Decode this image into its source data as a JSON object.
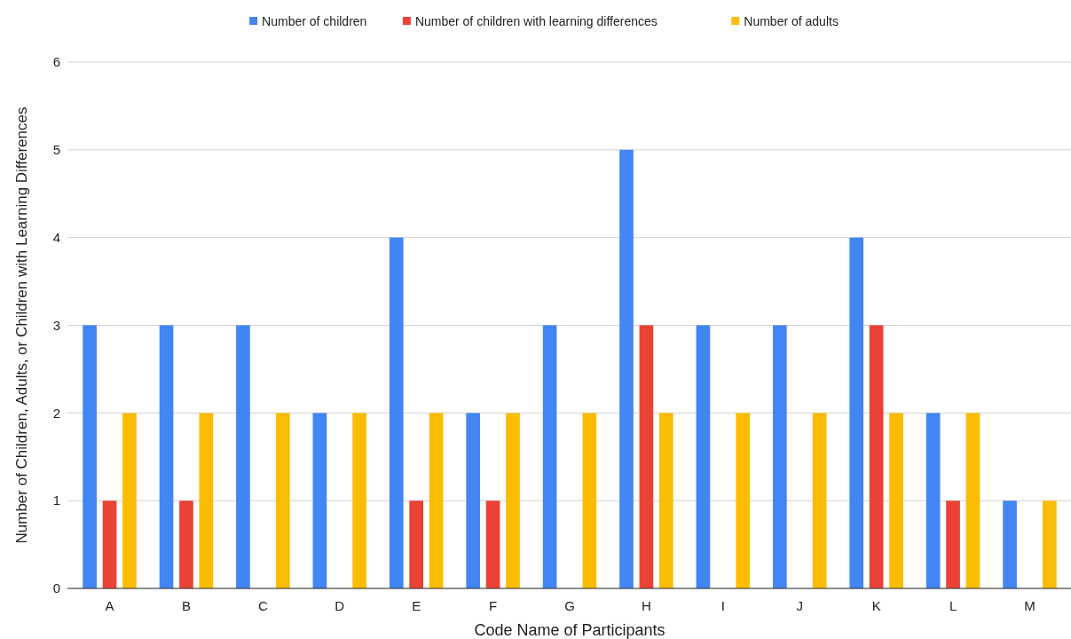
{
  "chart_data": {
    "type": "bar",
    "xlabel": "Code Name of Participants",
    "ylabel": "Number of Children, Adults, or Children with Learning Differences",
    "categories": [
      "A",
      "B",
      "C",
      "D",
      "E",
      "F",
      "G",
      "H",
      "I",
      "J",
      "K",
      "L",
      "M"
    ],
    "series": [
      {
        "name": "Number of children",
        "color": "#4285f4",
        "values": [
          3,
          3,
          3,
          2,
          4,
          2,
          3,
          5,
          3,
          3,
          4,
          2,
          1
        ]
      },
      {
        "name": "Number of children with learning differences",
        "color": "#ea4335",
        "values": [
          1,
          1,
          0,
          0,
          1,
          1,
          0,
          3,
          0,
          0,
          3,
          1,
          0
        ]
      },
      {
        "name": "Number of adults",
        "color": "#fbbc04",
        "values": [
          2,
          2,
          2,
          2,
          2,
          2,
          2,
          2,
          2,
          2,
          2,
          2,
          1
        ]
      }
    ],
    "ylim": [
      0,
      6
    ],
    "yticks": [
      0,
      1,
      2,
      3,
      4,
      5,
      6
    ],
    "grid": "y",
    "legend": "top"
  }
}
